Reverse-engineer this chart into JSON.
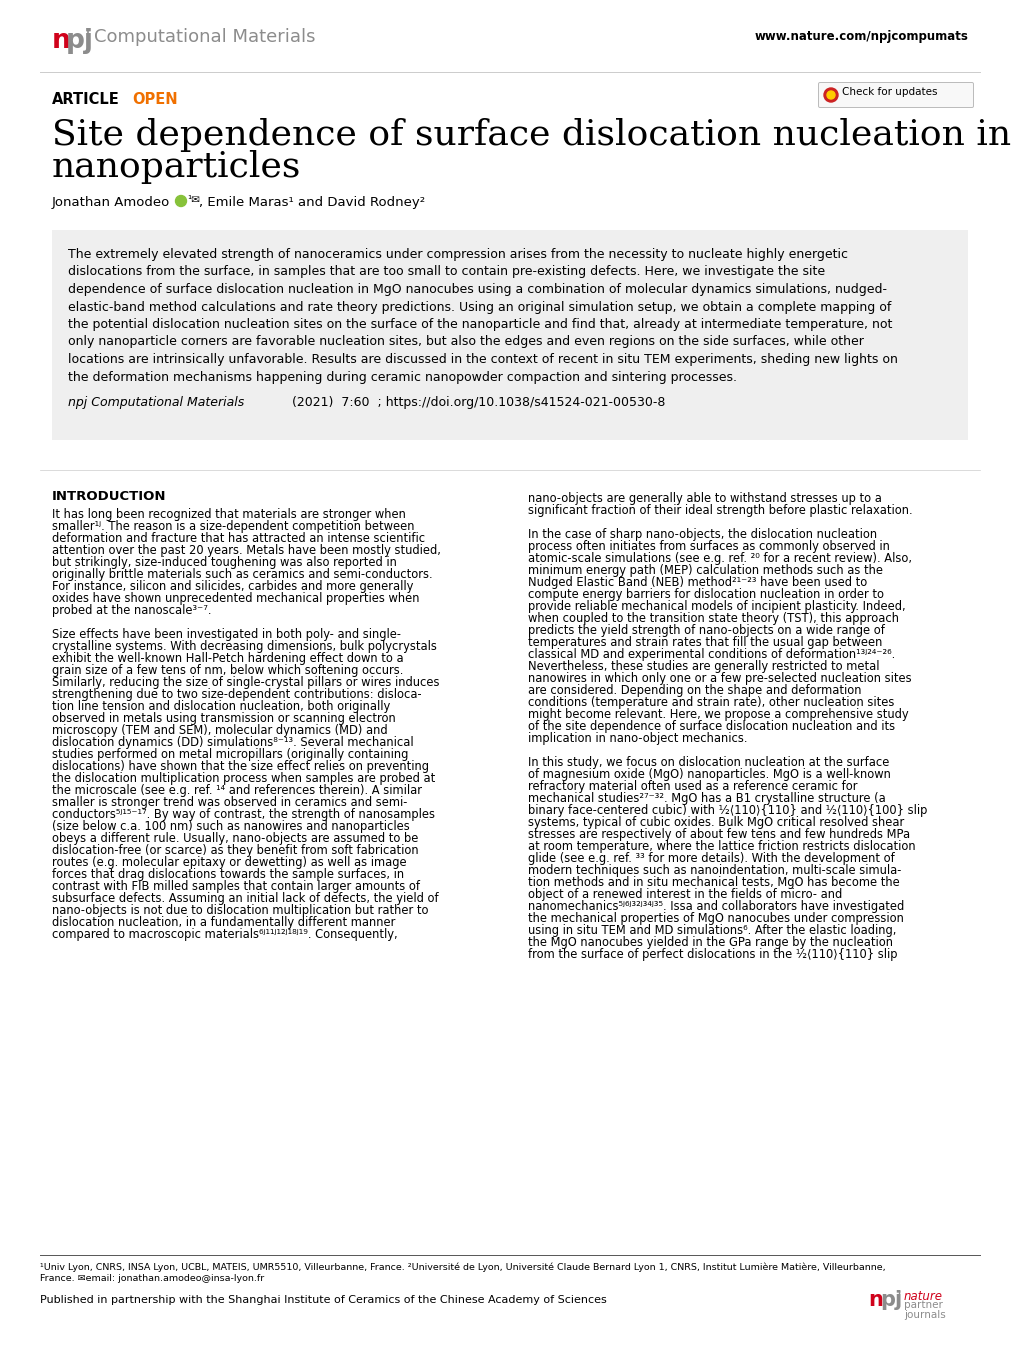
{
  "bg_color": "#ffffff",
  "header_url": "www.nature.com/npjcompumats",
  "article_label": "ARTICLE",
  "open_label": "OPEN",
  "open_color": "#f07000",
  "title_line1": "Site dependence of surface dislocation nucleation in ceramic",
  "title_line2": "nanoparticles",
  "abstract_bg": "#efefef",
  "abstract_lines": [
    "The extremely elevated strength of nanoceramics under compression arises from the necessity to nucleate highly energetic",
    "dislocations from the surface, in samples that are too small to contain pre-existing defects. Here, we investigate the site",
    "dependence of surface dislocation nucleation in MgO nanocubes using a combination of molecular dynamics simulations, nudged-",
    "elastic-band method calculations and rate theory predictions. Using an original simulation setup, we obtain a complete mapping of",
    "the potential dislocation nucleation sites on the surface of the nanoparticle and find that, already at intermediate temperature, not",
    "only nanoparticle corners are favorable nucleation sites, but also the edges and even regions on the side surfaces, while other",
    "locations are intrinsically unfavorable. Results are discussed in the context of recent in situ TEM experiments, sheding new lights on",
    "the deformation mechanisms happening during ceramic nanopowder compaction and sintering processes."
  ],
  "intro_heading": "INTRODUCTION",
  "col1_lines": [
    "It has long been recognized that materials are stronger when",
    "smaller¹ʲ. The reason is a size-dependent competition between",
    "deformation and fracture that has attracted an intense scientific",
    "attention over the past 20 years. Metals have been mostly studied,",
    "but strikingly, size-induced toughening was also reported in",
    "originally brittle materials such as ceramics and semi-conductors.",
    "For instance, silicon and silicides, carbides and more generally",
    "oxides have shown unprecedented mechanical properties when",
    "probed at the nanoscale³⁻⁷.",
    "",
    "Size effects have been investigated in both poly- and single-",
    "crystalline systems. With decreasing dimensions, bulk polycrystals",
    "exhibit the well-known Hall-Petch hardening effect down to a",
    "grain size of a few tens of nm, below which softening occurs.",
    "Similarly, reducing the size of single-crystal pillars or wires induces",
    "strengthening due to two size-dependent contributions: disloca-",
    "tion line tension and dislocation nucleation, both originally",
    "observed in metals using transmission or scanning electron",
    "microscopy (TEM and SEM), molecular dynamics (MD) and",
    "dislocation dynamics (DD) simulations⁸⁻¹³. Several mechanical",
    "studies performed on metal micropillars (originally containing",
    "dislocations) have shown that the size effect relies on preventing",
    "the dislocation multiplication process when samples are probed at",
    "the microscale (see e.g. ref. ¹⁴ and references therein). A similar",
    "smaller is stronger trend was observed in ceramics and semi-",
    "conductors⁵ʲ¹⁵⁻¹⁷. By way of contrast, the strength of nanosamples",
    "(size below c.a. 100 nm) such as nanowires and nanoparticles",
    "obeys a different rule. Usually, nano-objects are assumed to be",
    "dislocation-free (or scarce) as they benefit from soft fabrication",
    "routes (e.g. molecular epitaxy or dewetting) as well as image",
    "forces that drag dislocations towards the sample surfaces, in",
    "contrast with FIB milled samples that contain larger amounts of",
    "subsurface defects. Assuming an initial lack of defects, the yield of",
    "nano-objects is not due to dislocation multiplication but rather to",
    "dislocation nucleation, in a fundamentally different manner",
    "compared to macroscopic materials⁶ʲ¹¹ʲ¹²ʲ¹⁸ʲ¹⁹. Consequently,"
  ],
  "col2_lines": [
    "nano-objects are generally able to withstand stresses up to a",
    "significant fraction of their ideal strength before plastic relaxation.",
    "",
    "In the case of sharp nano-objects, the dislocation nucleation",
    "process often initiates from surfaces as commonly observed in",
    "atomic-scale simulations (see e.g. ref. ²⁰ for a recent review). Also,",
    "minimum energy path (MEP) calculation methods such as the",
    "Nudged Elastic Band (NEB) method²¹⁻²³ have been used to",
    "compute energy barriers for dislocation nucleation in order to",
    "provide reliable mechanical models of incipient plasticity. Indeed,",
    "when coupled to the transition state theory (TST), this approach",
    "predicts the yield strength of nano-objects on a wide range of",
    "temperatures and strain rates that fill the usual gap between",
    "classical MD and experimental conditions of deformation¹³ʲ²⁴⁻²⁶.",
    "Nevertheless, these studies are generally restricted to metal",
    "nanowires in which only one or a few pre-selected nucleation sites",
    "are considered. Depending on the shape and deformation",
    "conditions (temperature and strain rate), other nucleation sites",
    "might become relevant. Here, we propose a comprehensive study",
    "of the site dependence of surface dislocation nucleation and its",
    "implication in nano-object mechanics.",
    "",
    "In this study, we focus on dislocation nucleation at the surface",
    "of magnesium oxide (MgO) nanoparticles. MgO is a well-known",
    "refractory material often used as a reference ceramic for",
    "mechanical studies²⁷⁻³². MgO has a B1 crystalline structure (a",
    "binary face-centered cubic) with ½⟨110⟩{110} and ½⟨110⟩{100} slip",
    "systems, typical of cubic oxides. Bulk MgO critical resolved shear",
    "stresses are respectively of about few tens and few hundreds MPa",
    "at room temperature, where the lattice friction restricts dislocation",
    "glide (see e.g. ref. ³³ for more details). With the development of",
    "modern techniques such as nanoindentation, multi-scale simula-",
    "tion methods and in situ mechanical tests, MgO has become the",
    "object of a renewed interest in the fields of micro- and",
    "nanomechanics⁵ʲ⁶ʲ³²ʲ³⁴ʲ³⁵. Issa and collaborators have investigated",
    "the mechanical properties of MgO nanocubes under compression",
    "using in situ TEM and MD simulations⁶. After the elastic loading,",
    "the MgO nanocubes yielded in the GPa range by the nucleation",
    "from the surface of perfect dislocations in the ½⟨110⟩{110} slip"
  ],
  "footnote1a": "¹Univ Lyon, CNRS, INSA Lyon, UCBL, MATEIS, UMR5510, Villeurbanne, France. ²Université de Lyon, Université Claude Bernard Lyon 1, CNRS, Institut Lumière Matière, Villeurbanne,",
  "footnote1b": "France. ✉email: jonathan.amodeo@insa-lyon.fr",
  "footnote2": "Published in partnership with the Shanghai Institute of Ceramics of the Chinese Academy of Sciences",
  "npj_red": "#d0021b",
  "npj_gray": "#8c8c8c",
  "npj_dark": "#444444"
}
